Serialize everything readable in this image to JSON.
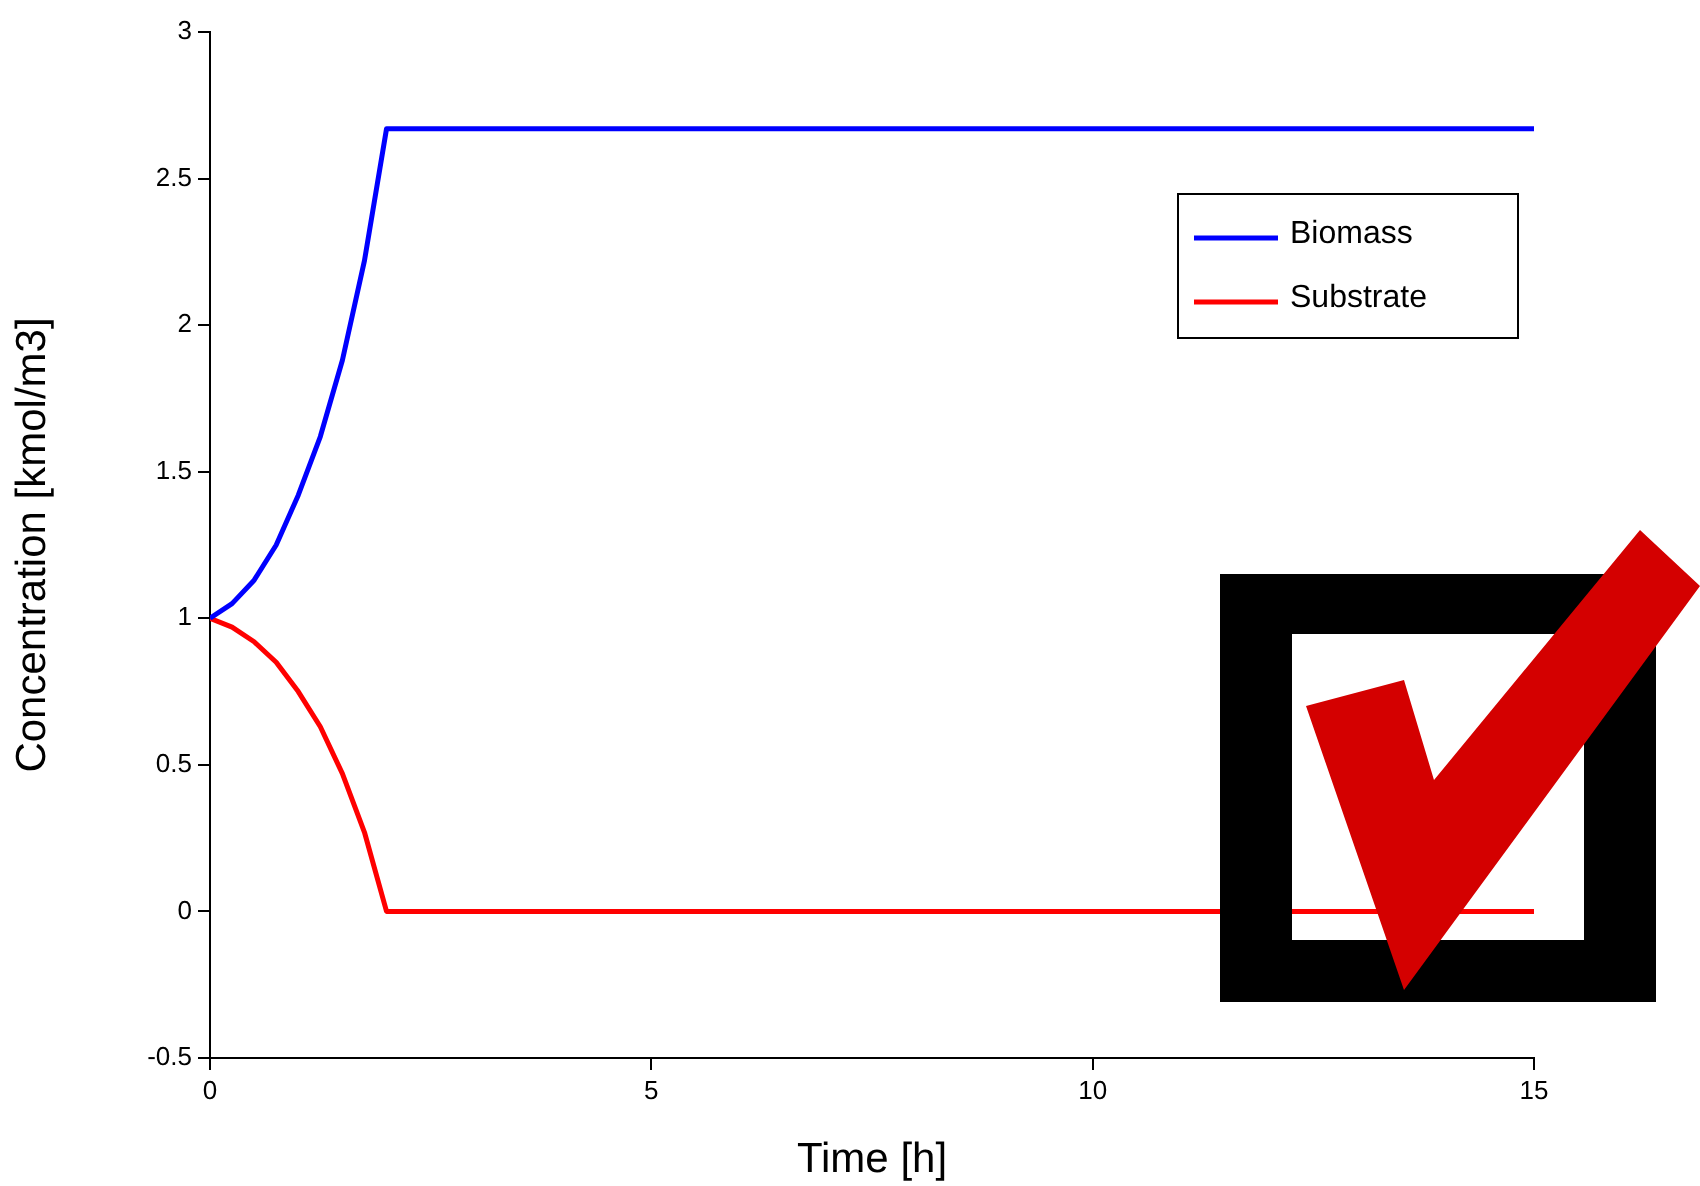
{
  "chart_data": {
    "type": "line",
    "xlabel": "Time [h]",
    "ylabel": "Concentration [kmol/m3]",
    "x": [
      0,
      0.25,
      0.5,
      0.75,
      1,
      1.25,
      1.5,
      1.75,
      2,
      15
    ],
    "series": [
      {
        "name": "Biomass",
        "color": "#0000ff",
        "values": [
          1,
          1.05,
          1.13,
          1.25,
          1.42,
          1.62,
          1.88,
          2.22,
          2.67,
          2.67
        ]
      },
      {
        "name": "Substrate",
        "color": "#ff0000",
        "values": [
          1,
          0.97,
          0.92,
          0.85,
          0.75,
          0.63,
          0.47,
          0.27,
          0,
          0
        ]
      }
    ],
    "xlim": [
      0,
      15
    ],
    "xticks": [
      0,
      5,
      10,
      15
    ],
    "ylim": [
      -0.5,
      3
    ],
    "yticks": [
      -0.5,
      0,
      0.5,
      1,
      1.5,
      2,
      2.5,
      3
    ],
    "legend": "top right",
    "marker": "none",
    "line_style": "solid"
  }
}
